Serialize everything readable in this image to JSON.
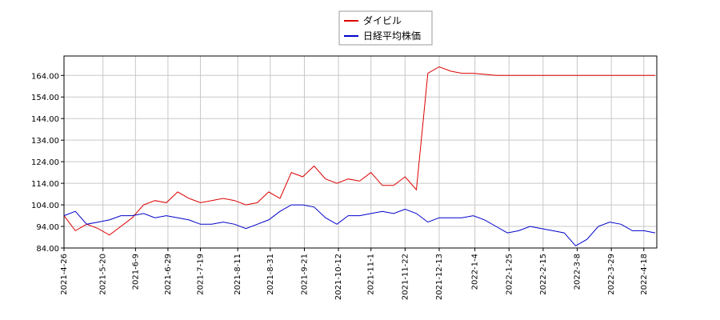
{
  "chart_data": {
    "type": "line",
    "x": [
      "2021-04-26",
      "2021-05-03",
      "2021-05-10",
      "2021-05-17",
      "2021-05-24",
      "2021-05-31",
      "2021-06-07",
      "2021-06-14",
      "2021-06-21",
      "2021-06-28",
      "2021-07-05",
      "2021-07-12",
      "2021-07-19",
      "2021-07-26",
      "2021-08-02",
      "2021-08-09",
      "2021-08-16",
      "2021-08-23",
      "2021-08-30",
      "2021-09-06",
      "2021-09-13",
      "2021-09-20",
      "2021-09-27",
      "2021-10-04",
      "2021-10-11",
      "2021-10-18",
      "2021-10-25",
      "2021-11-01",
      "2021-11-08",
      "2021-11-15",
      "2021-11-22",
      "2021-11-29",
      "2021-12-06",
      "2021-12-13",
      "2021-12-20",
      "2021-12-27",
      "2022-01-03",
      "2022-01-10",
      "2022-01-17",
      "2022-01-24",
      "2022-01-31",
      "2022-02-07",
      "2022-02-14",
      "2022-02-21",
      "2022-02-28",
      "2022-03-07",
      "2022-03-14",
      "2022-03-21",
      "2022-03-28",
      "2022-04-04",
      "2022-04-11",
      "2022-04-18",
      "2022-04-25"
    ],
    "series": [
      {
        "name": "ダイビル",
        "color": "#dd0000",
        "values": [
          99,
          92,
          95,
          93,
          90,
          94,
          98,
          104,
          106,
          105,
          110,
          107,
          105,
          106,
          107,
          106,
          104,
          105,
          110,
          107,
          119,
          117,
          122,
          116,
          114,
          116,
          115,
          119,
          113,
          113,
          117,
          111,
          165,
          168,
          166,
          165,
          165,
          164.5,
          164,
          164,
          164,
          164,
          164,
          164,
          164,
          164,
          164,
          164,
          164,
          164,
          164,
          164,
          164
        ]
      },
      {
        "name": "日経平均株価",
        "color": "#0000cc",
        "values": [
          99,
          101,
          95,
          96,
          97,
          99,
          99,
          100,
          98,
          99,
          98,
          97,
          95,
          95,
          96,
          95,
          93,
          95,
          97,
          101,
          104,
          104,
          103,
          98,
          95,
          99,
          99,
          100,
          101,
          100,
          102,
          100,
          96,
          98,
          98,
          98,
          99,
          97,
          94,
          91,
          92,
          94,
          93,
          92,
          91,
          85,
          88,
          94,
          96,
          95,
          92,
          92,
          91
        ]
      }
    ],
    "xlim": [
      "2021-04-26",
      "2022-04-26"
    ],
    "xticks": [
      {
        "value": "2021-04-26",
        "label": "2021-4-26"
      },
      {
        "value": "2021-05-20",
        "label": "2021-5-20"
      },
      {
        "value": "2021-06-09",
        "label": "2021-6-9"
      },
      {
        "value": "2021-06-29",
        "label": "2021-6-29"
      },
      {
        "value": "2021-07-19",
        "label": "2021-7-19"
      },
      {
        "value": "2021-08-11",
        "label": "2021-8-11"
      },
      {
        "value": "2021-08-31",
        "label": "2021-8-31"
      },
      {
        "value": "2021-09-21",
        "label": "2021-9-21"
      },
      {
        "value": "2021-10-12",
        "label": "2021-10-12"
      },
      {
        "value": "2021-11-01",
        "label": "2021-11-1"
      },
      {
        "value": "2021-11-22",
        "label": "2021-11-22"
      },
      {
        "value": "2021-12-13",
        "label": "2021-12-13"
      },
      {
        "value": "2022-01-04",
        "label": "2022-1-4"
      },
      {
        "value": "2022-01-25",
        "label": "2022-1-25"
      },
      {
        "value": "2022-02-15",
        "label": "2022-2-15"
      },
      {
        "value": "2022-03-08",
        "label": "2022-3-8"
      },
      {
        "value": "2022-03-29",
        "label": "2022-3-29"
      },
      {
        "value": "2022-04-18",
        "label": "2022-4-18"
      }
    ],
    "ylim": [
      84,
      173
    ],
    "yticks": [
      {
        "value": 84,
        "label": "84.00"
      },
      {
        "value": 94,
        "label": "94.00"
      },
      {
        "value": 104,
        "label": "104.00"
      },
      {
        "value": 114,
        "label": "114.00"
      },
      {
        "value": 124,
        "label": "124.00"
      },
      {
        "value": 134,
        "label": "134.00"
      },
      {
        "value": 144,
        "label": "144.00"
      },
      {
        "value": 154,
        "label": "154.00"
      },
      {
        "value": 164,
        "label": "164.00"
      }
    ],
    "grid": true
  }
}
